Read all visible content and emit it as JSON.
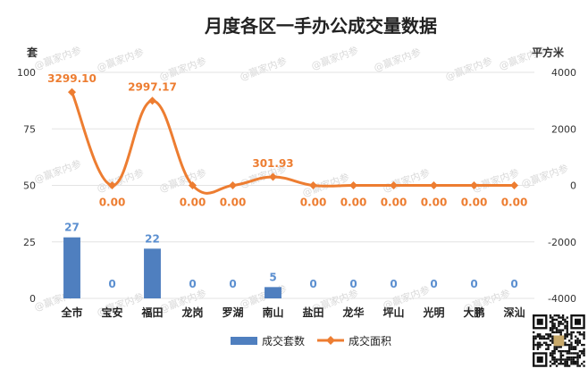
{
  "chart_data": {
    "type": "bar+line",
    "title": "月度各区一手办公成交量数据",
    "categories": [
      "全市",
      "宝安",
      "福田",
      "龙岗",
      "罗湖",
      "南山",
      "盐田",
      "龙华",
      "坪山",
      "光明",
      "大鹏",
      "深汕"
    ],
    "left_axis": {
      "unit": "套",
      "ticks": [
        0,
        25,
        50,
        75,
        100
      ]
    },
    "right_axis": {
      "unit": "平方米",
      "ticks": [
        -4000,
        -2000,
        0,
        2000,
        4000
      ]
    },
    "series": [
      {
        "name": "成交套数",
        "type": "bar",
        "axis": "left",
        "values": [
          27,
          0,
          22,
          0,
          0,
          5,
          0,
          0,
          0,
          0,
          0,
          0
        ],
        "labels": [
          "27",
          "0",
          "22",
          "0",
          "0",
          "5",
          "0",
          "0",
          "0",
          "0",
          "0",
          "0"
        ]
      },
      {
        "name": "成交面积",
        "type": "line",
        "axis": "right",
        "values": [
          3299.1,
          0,
          2997.17,
          0,
          0,
          301.93,
          0,
          0,
          0,
          0,
          0,
          0
        ],
        "labels": [
          "3299.10",
          "0.00",
          "2997.17",
          "0.00",
          "0.00",
          "301.93",
          "0.00",
          "0.00",
          "0.00",
          "0.00",
          "0.00",
          "0.00"
        ]
      }
    ],
    "legend": "bottom",
    "grid": true
  },
  "colors": {
    "bar": "#4f7fbf",
    "line": "#ed7d31",
    "bar_label": "#5b8fd0",
    "grid": "#e3e3e3"
  },
  "watermark": "@赢家内参"
}
